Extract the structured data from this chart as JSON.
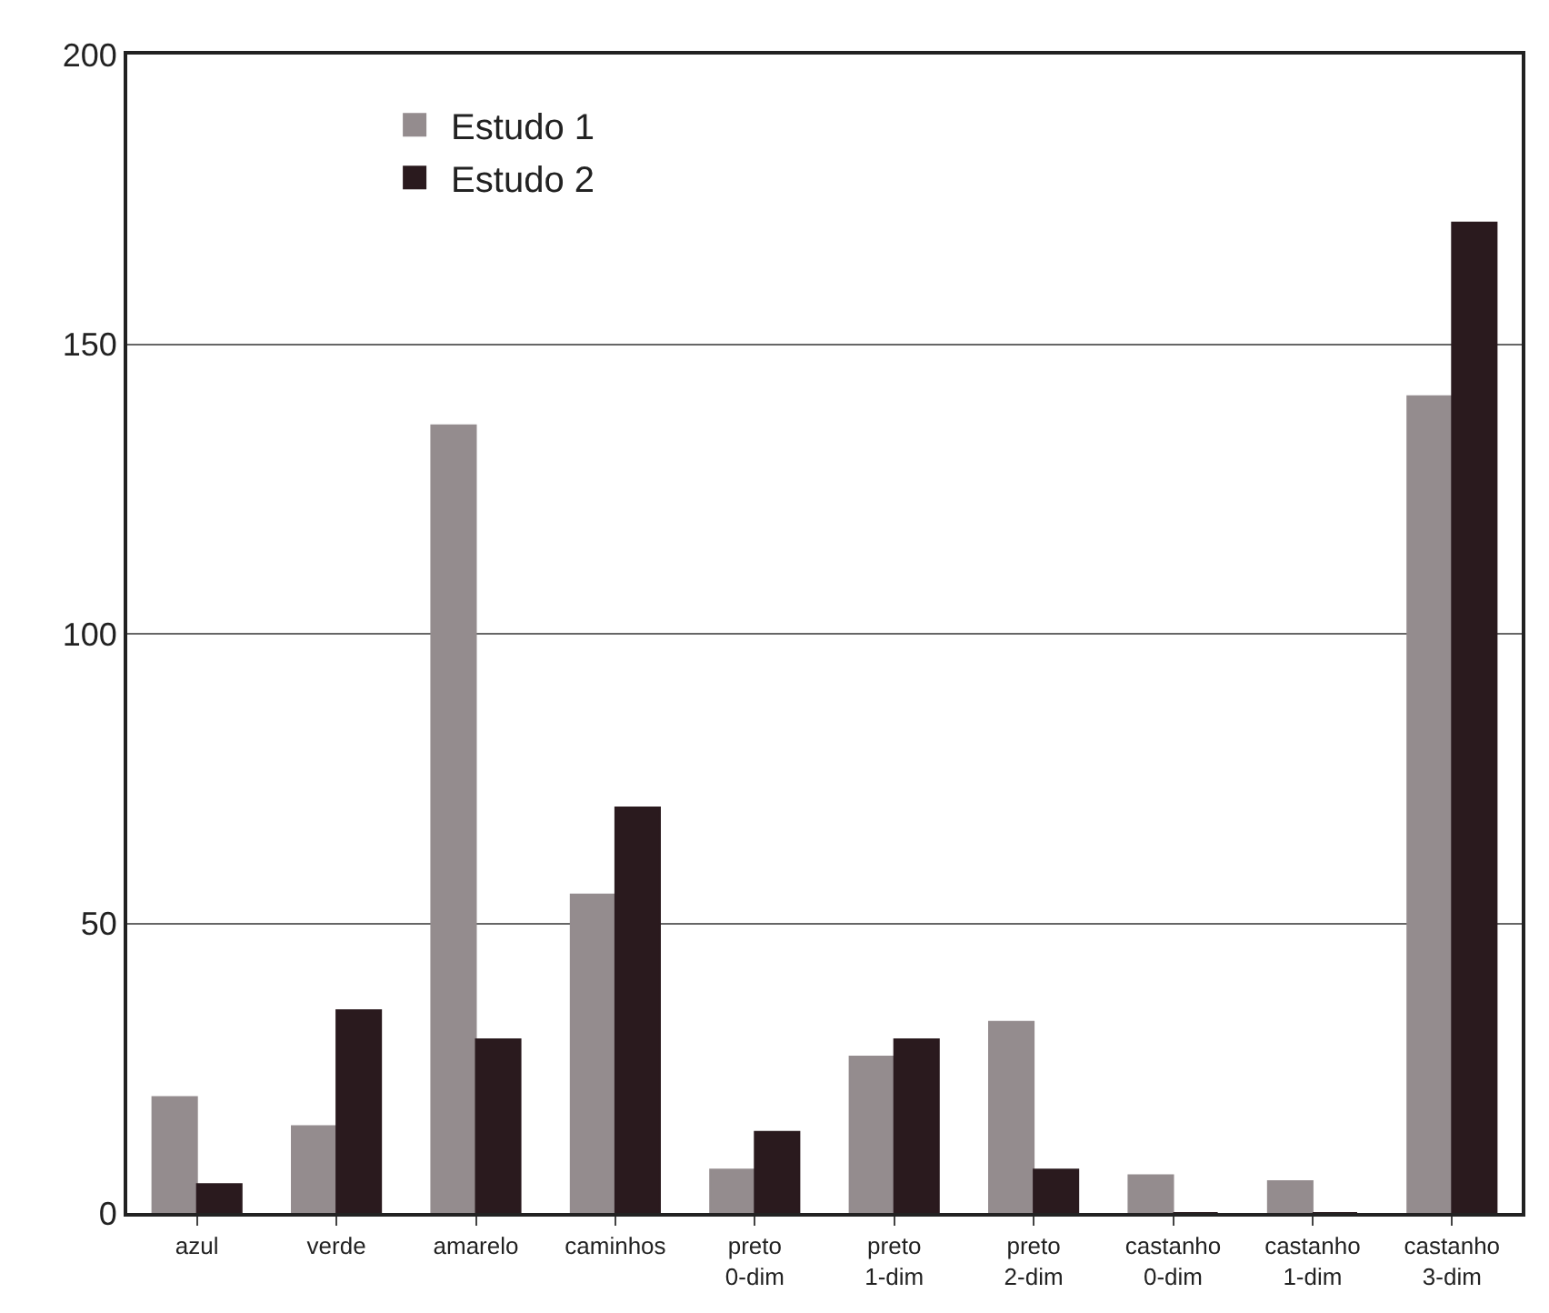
{
  "chart_data": {
    "type": "bar",
    "categories": [
      "azul",
      "verde",
      "amarelo",
      "caminhos",
      "preto 0-dim",
      "preto 1-dim",
      "preto 2-dim",
      "castanho 0-dim",
      "castanho 1-dim",
      "castanho 3-dim"
    ],
    "series": [
      {
        "name": "Estudo 1",
        "color": "#948c8e",
        "values": [
          20,
          15,
          136,
          55,
          7.5,
          27,
          33,
          6.5,
          5.5,
          141
        ]
      },
      {
        "name": "Estudo 2",
        "color": "#2a1a1e",
        "values": [
          5,
          35,
          30,
          70,
          14,
          30,
          7.5,
          0,
          0,
          171
        ]
      }
    ],
    "ylim": [
      0,
      200
    ],
    "yticks": [
      0,
      50,
      100,
      150,
      200
    ],
    "grid": "y",
    "legend": "top left"
  }
}
